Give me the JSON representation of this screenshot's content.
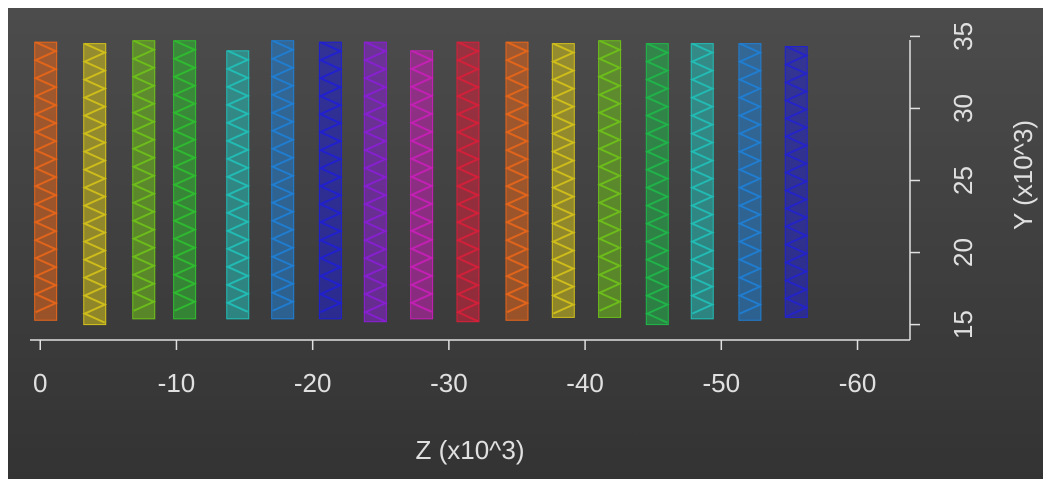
{
  "chart_data": {
    "type": "column-range",
    "x_label": "Z (x10^3)",
    "y_label": "Y (x10^3)",
    "x": [
      -0.4,
      -4.0,
      -7.6,
      -10.6,
      -14.5,
      -17.8,
      -21.3,
      -24.6,
      -28.0,
      -31.4,
      -35.0,
      -38.4,
      -41.8,
      -45.3,
      -48.6,
      -52.1,
      -55.5
    ],
    "low": [
      15.3,
      15.0,
      15.4,
      15.4,
      15.4,
      15.4,
      15.4,
      15.2,
      15.4,
      15.2,
      15.3,
      15.5,
      15.5,
      15.0,
      15.4,
      15.3,
      15.5
    ],
    "high": [
      34.6,
      34.5,
      34.7,
      34.7,
      34.0,
      34.7,
      34.6,
      34.6,
      34.0,
      34.6,
      34.6,
      34.5,
      34.7,
      34.5,
      34.5,
      34.5,
      34.3
    ],
    "colors": [
      "#e8661a",
      "#d4c21a",
      "#6fc21a",
      "#2fbf30",
      "#21c0b8",
      "#1f7fd6",
      "#1f1fd6",
      "#8a1fd6",
      "#c81fb8",
      "#d81f3a",
      "#e8661a",
      "#d4c21a",
      "#6fc21a",
      "#1fb84a",
      "#21c0b8",
      "#1f7fd6",
      "#2222d0"
    ],
    "xlim": [
      2,
      -64
    ],
    "xticks": [
      0,
      -10,
      -20,
      -30,
      -40,
      -50,
      -60
    ],
    "ylim": [
      14,
      36
    ],
    "yticks": [
      15,
      20,
      25,
      30,
      35
    ]
  }
}
